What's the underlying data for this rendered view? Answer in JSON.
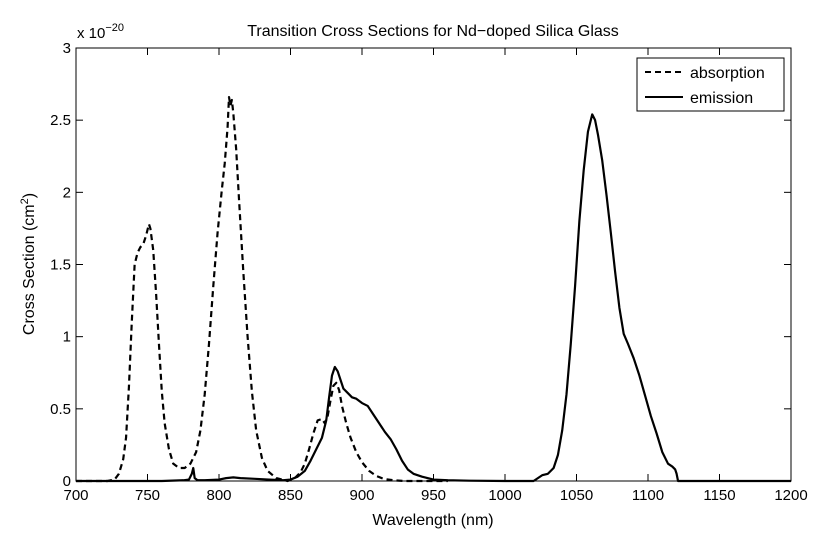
{
  "chart_data": {
    "type": "line",
    "title": "Transition Cross Sections for Nd−doped Silica Glass",
    "xlabel": "Wavelength (nm)",
    "ylabel_main": "Cross Section (cm",
    "ylabel_sup": "2",
    "ylabel_end": ")",
    "y_exponent_base": "x 10",
    "y_exponent_power": "−20",
    "xlim": [
      700,
      1200
    ],
    "ylim": [
      0,
      3
    ],
    "xticks": [
      700,
      750,
      800,
      850,
      900,
      950,
      1000,
      1050,
      1100,
      1150,
      1200
    ],
    "xtick_labels": [
      "700",
      "750",
      "800",
      "850",
      "900",
      "950",
      "1000",
      "1050",
      "1100",
      "1150",
      "1200"
    ],
    "yticks": [
      0,
      0.5,
      1,
      1.5,
      2,
      2.5,
      3
    ],
    "ytick_labels": [
      "0",
      "0.5",
      "1",
      "1.5",
      "2",
      "2.5",
      "3"
    ],
    "legend_position": "top-right",
    "grid": false,
    "series": [
      {
        "name": "absorption",
        "style": "dashed",
        "color": "#000000",
        "points": [
          [
            700,
            0
          ],
          [
            722,
            0
          ],
          [
            727,
            0.01
          ],
          [
            730,
            0.05
          ],
          [
            733,
            0.15
          ],
          [
            735,
            0.3
          ],
          [
            737,
            0.65
          ],
          [
            739,
            1.1
          ],
          [
            741,
            1.5
          ],
          [
            743,
            1.58
          ],
          [
            745,
            1.62
          ],
          [
            747,
            1.64
          ],
          [
            749,
            1.7
          ],
          [
            751,
            1.78
          ],
          [
            752,
            1.75
          ],
          [
            754,
            1.6
          ],
          [
            756,
            1.3
          ],
          [
            758,
            0.95
          ],
          [
            760,
            0.62
          ],
          [
            762,
            0.4
          ],
          [
            765,
            0.22
          ],
          [
            768,
            0.12
          ],
          [
            772,
            0.09
          ],
          [
            776,
            0.09
          ],
          [
            780,
            0.12
          ],
          [
            784,
            0.2
          ],
          [
            787,
            0.35
          ],
          [
            790,
            0.6
          ],
          [
            793,
            0.95
          ],
          [
            796,
            1.35
          ],
          [
            799,
            1.72
          ],
          [
            802,
            2.02
          ],
          [
            804,
            2.2
          ],
          [
            806,
            2.45
          ],
          [
            807,
            2.66
          ],
          [
            808,
            2.6
          ],
          [
            809,
            2.64
          ],
          [
            810,
            2.55
          ],
          [
            812,
            2.3
          ],
          [
            814,
            1.95
          ],
          [
            817,
            1.45
          ],
          [
            820,
            1.0
          ],
          [
            823,
            0.62
          ],
          [
            826,
            0.35
          ],
          [
            830,
            0.16
          ],
          [
            834,
            0.07
          ],
          [
            840,
            0.02
          ],
          [
            848,
            0.0
          ],
          [
            853,
            0.02
          ],
          [
            857,
            0.06
          ],
          [
            860,
            0.12
          ],
          [
            863,
            0.22
          ],
          [
            866,
            0.33
          ],
          [
            869,
            0.42
          ],
          [
            872,
            0.43
          ],
          [
            874,
            0.4
          ],
          [
            876,
            0.45
          ],
          [
            878,
            0.56
          ],
          [
            880,
            0.66
          ],
          [
            882,
            0.68
          ],
          [
            884,
            0.63
          ],
          [
            886,
            0.52
          ],
          [
            889,
            0.4
          ],
          [
            892,
            0.3
          ],
          [
            896,
            0.2
          ],
          [
            900,
            0.13
          ],
          [
            905,
            0.07
          ],
          [
            910,
            0.035
          ],
          [
            915,
            0.015
          ],
          [
            922,
            0.005
          ],
          [
            930,
            0
          ],
          [
            960,
            0
          ]
        ]
      },
      {
        "name": "emission",
        "style": "solid",
        "color": "#000000",
        "points": [
          [
            700,
            0
          ],
          [
            720,
            0
          ],
          [
            740,
            0
          ],
          [
            760,
            0.0
          ],
          [
            775,
            0.005
          ],
          [
            779,
            0.01
          ],
          [
            781,
            0.05
          ],
          [
            782,
            0.09
          ],
          [
            783,
            0.02
          ],
          [
            785,
            0.005
          ],
          [
            790,
            0.005
          ],
          [
            800,
            0.01
          ],
          [
            805,
            0.02
          ],
          [
            810,
            0.025
          ],
          [
            815,
            0.02
          ],
          [
            825,
            0.015
          ],
          [
            835,
            0.01
          ],
          [
            845,
            0.005
          ],
          [
            850,
            0.01
          ],
          [
            855,
            0.03
          ],
          [
            860,
            0.07
          ],
          [
            864,
            0.14
          ],
          [
            868,
            0.22
          ],
          [
            872,
            0.3
          ],
          [
            875,
            0.42
          ],
          [
            877,
            0.58
          ],
          [
            879,
            0.73
          ],
          [
            881,
            0.79
          ],
          [
            883,
            0.76
          ],
          [
            885,
            0.7
          ],
          [
            887,
            0.64
          ],
          [
            890,
            0.61
          ],
          [
            893,
            0.58
          ],
          [
            896,
            0.57
          ],
          [
            900,
            0.54
          ],
          [
            904,
            0.52
          ],
          [
            908,
            0.46
          ],
          [
            912,
            0.4
          ],
          [
            916,
            0.34
          ],
          [
            920,
            0.29
          ],
          [
            924,
            0.22
          ],
          [
            928,
            0.14
          ],
          [
            932,
            0.08
          ],
          [
            936,
            0.05
          ],
          [
            942,
            0.03
          ],
          [
            950,
            0.01
          ],
          [
            960,
            0.005
          ],
          [
            975,
            0.002
          ],
          [
            1000,
            0.0
          ],
          [
            1020,
            0.0
          ],
          [
            1023,
            0.02
          ],
          [
            1026,
            0.04
          ],
          [
            1030,
            0.05
          ],
          [
            1034,
            0.09
          ],
          [
            1037,
            0.18
          ],
          [
            1040,
            0.35
          ],
          [
            1043,
            0.6
          ],
          [
            1046,
            0.95
          ],
          [
            1049,
            1.35
          ],
          [
            1052,
            1.8
          ],
          [
            1055,
            2.15
          ],
          [
            1058,
            2.42
          ],
          [
            1060,
            2.5
          ],
          [
            1061,
            2.54
          ],
          [
            1063,
            2.5
          ],
          [
            1065,
            2.4
          ],
          [
            1068,
            2.22
          ],
          [
            1071,
            1.98
          ],
          [
            1074,
            1.72
          ],
          [
            1077,
            1.45
          ],
          [
            1080,
            1.2
          ],
          [
            1083,
            1.02
          ],
          [
            1086,
            0.95
          ],
          [
            1090,
            0.85
          ],
          [
            1094,
            0.73
          ],
          [
            1098,
            0.59
          ],
          [
            1102,
            0.45
          ],
          [
            1106,
            0.33
          ],
          [
            1110,
            0.2
          ],
          [
            1114,
            0.12
          ],
          [
            1117,
            0.1
          ],
          [
            1119,
            0.08
          ],
          [
            1120,
            0.05
          ],
          [
            1121,
            0.0
          ],
          [
            1122,
            0.0
          ],
          [
            1140,
            0
          ],
          [
            1200,
            0
          ]
        ]
      }
    ]
  }
}
